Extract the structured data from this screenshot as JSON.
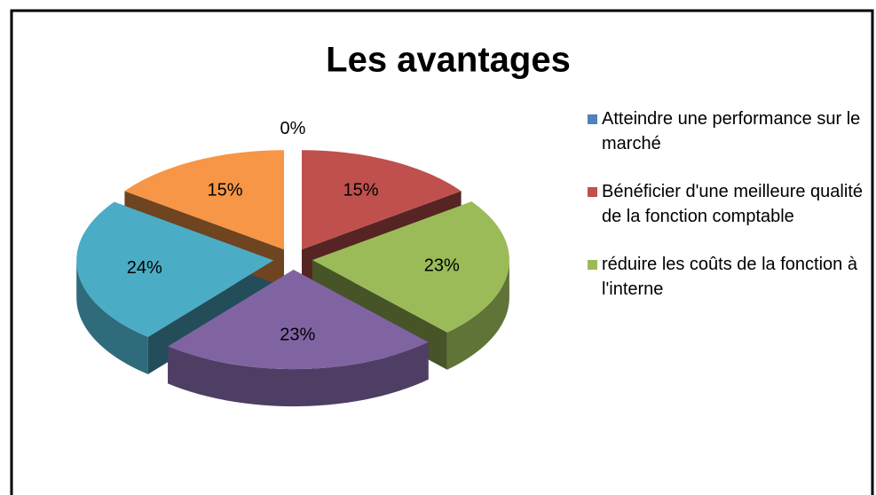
{
  "chart_data": {
    "type": "pie",
    "title": "Les avantages",
    "categories": [
      "Atteindre une performance sur le marché",
      "Bénéficier d'une meilleure qualité de la fonction comptable",
      "réduire les coûts de la fonction à l'interne",
      null,
      null,
      null
    ],
    "values": [
      0,
      15,
      23,
      23,
      24,
      15
    ],
    "value_labels": [
      "0%",
      "15%",
      "23%",
      "23%",
      "24%",
      "15%"
    ],
    "colors": [
      "#4f81bd",
      "#c0504d",
      "#9bbb59",
      "#8064a2",
      "#4bacc6",
      "#f79646"
    ],
    "legend": "right"
  }
}
